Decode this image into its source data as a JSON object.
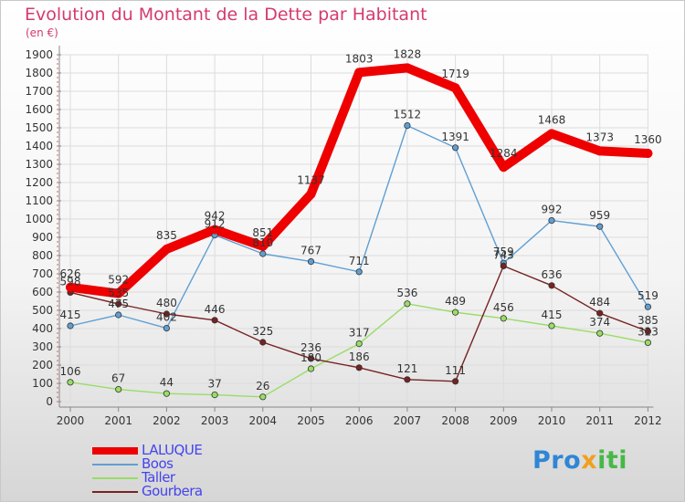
{
  "header": {
    "title": "Evolution du Montant de la Dette par Habitant",
    "subtitle": "(en €)"
  },
  "brand": {
    "logo_text": "Proxiti",
    "colors": [
      "#2e86d6",
      "#f0a020",
      "#47b847"
    ]
  },
  "chart_data": {
    "type": "line",
    "title": "Evolution du Montant de la Dette par Habitant",
    "subtitle": "(en €)",
    "xlabel": "",
    "ylabel": "",
    "ylim": [
      0,
      1900
    ],
    "yticks": [
      0,
      100,
      200,
      300,
      400,
      500,
      600,
      700,
      800,
      900,
      1000,
      1100,
      1200,
      1300,
      1400,
      1500,
      1600,
      1700,
      1800,
      1900
    ],
    "grid": true,
    "legend_position": "bottom-left",
    "categories": [
      "2000",
      "2001",
      "2002",
      "2003",
      "2004",
      "2005",
      "2006",
      "2007",
      "2008",
      "2009",
      "2010",
      "2011",
      "2012"
    ],
    "series": [
      {
        "name": "LALUQUE",
        "color": "#ee0000",
        "values": [
          626,
          592,
          835,
          942,
          851,
          1137,
          1803,
          1828,
          1719,
          1284,
          1468,
          1373,
          1360
        ]
      },
      {
        "name": "Boos",
        "color": "#5f9fd3",
        "values": [
          415,
          475,
          402,
          912,
          810,
          767,
          711,
          1512,
          1391,
          759,
          992,
          959,
          519
        ]
      },
      {
        "name": "Taller",
        "color": "#99dd66",
        "values": [
          106,
          67,
          44,
          37,
          26,
          180,
          317,
          536,
          489,
          456,
          415,
          374,
          323
        ]
      },
      {
        "name": "Gourbera",
        "color": "#772222",
        "values": [
          598,
          535,
          480,
          446,
          325,
          236,
          186,
          121,
          111,
          743,
          636,
          484,
          385
        ]
      }
    ]
  }
}
